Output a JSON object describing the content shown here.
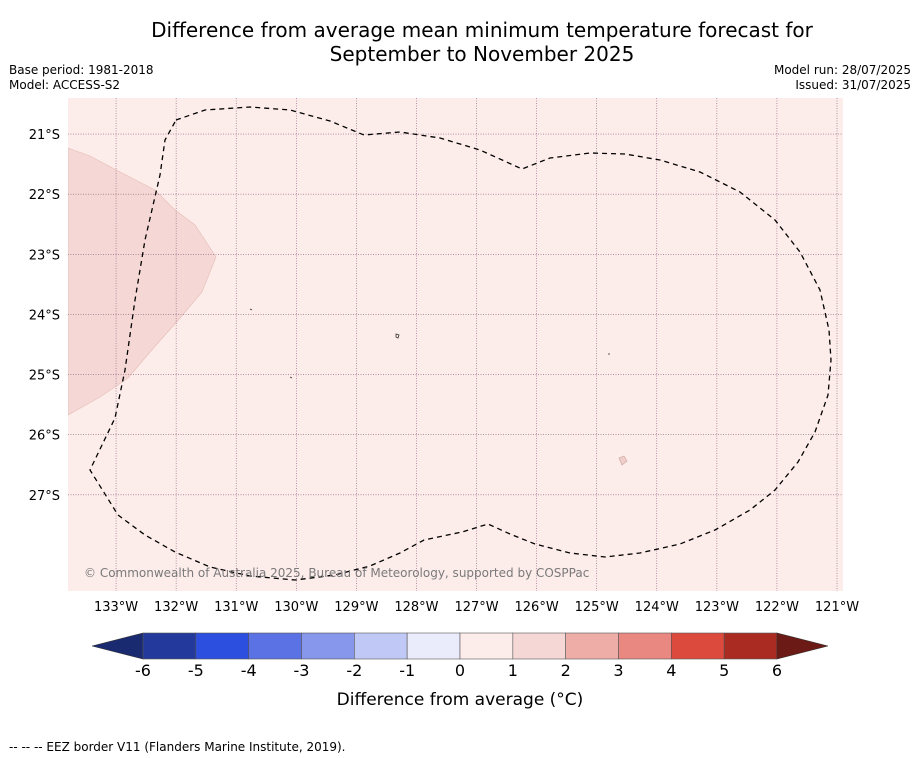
{
  "title": {
    "line1": "Difference from average mean minimum temperature forecast for",
    "line2": "September to November 2025"
  },
  "meta": {
    "base_period": "Base period: 1981-2018",
    "model": "Model: ACCESS-S2",
    "model_run": "Model run: 28/07/2025",
    "issued": "Issued: 31/07/2025"
  },
  "map": {
    "lon_range": [
      -133.8,
      -120.9
    ],
    "lat_range": [
      -28.6,
      -20.4
    ],
    "lon_ticks": [
      "133°W",
      "132°W",
      "131°W",
      "130°W",
      "129°W",
      "128°W",
      "127°W",
      "126°W",
      "125°W",
      "124°W",
      "123°W",
      "122°W",
      "121°W"
    ],
    "lat_ticks": [
      "21°S",
      "22°S",
      "23°S",
      "24°S",
      "25°S",
      "26°S",
      "27°S"
    ],
    "background_class": "0 to 1",
    "background_color": "#fcecea",
    "warmer_region_class": "1 to 2",
    "warmer_region_color": "#f5d8d5",
    "gridline_color": "#8a5a7a",
    "copyright": "© Commonwealth of Australia 2025, Bureau of Meteorology, supported by COSPPac"
  },
  "colorbar": {
    "label": "Difference from average (°C)",
    "ticks": [
      "-6",
      "-5",
      "-4",
      "-3",
      "-2",
      "-1",
      "0",
      "1",
      "2",
      "3",
      "4",
      "5",
      "6"
    ],
    "colors": [
      "#233a9c",
      "#2d4fe0",
      "#5a72e4",
      "#8797ec",
      "#c0c8f5",
      "#eaecfb",
      "#fcecea",
      "#f5d8d5",
      "#eeaea7",
      "#e88880",
      "#dc4a3e",
      "#a92b22"
    ],
    "low_extend_color": "#1a2a70",
    "high_extend_color": "#6b1a15"
  },
  "footer": "-- -- -- EEZ border V11 (Flanders Marine Institute, 2019)."
}
